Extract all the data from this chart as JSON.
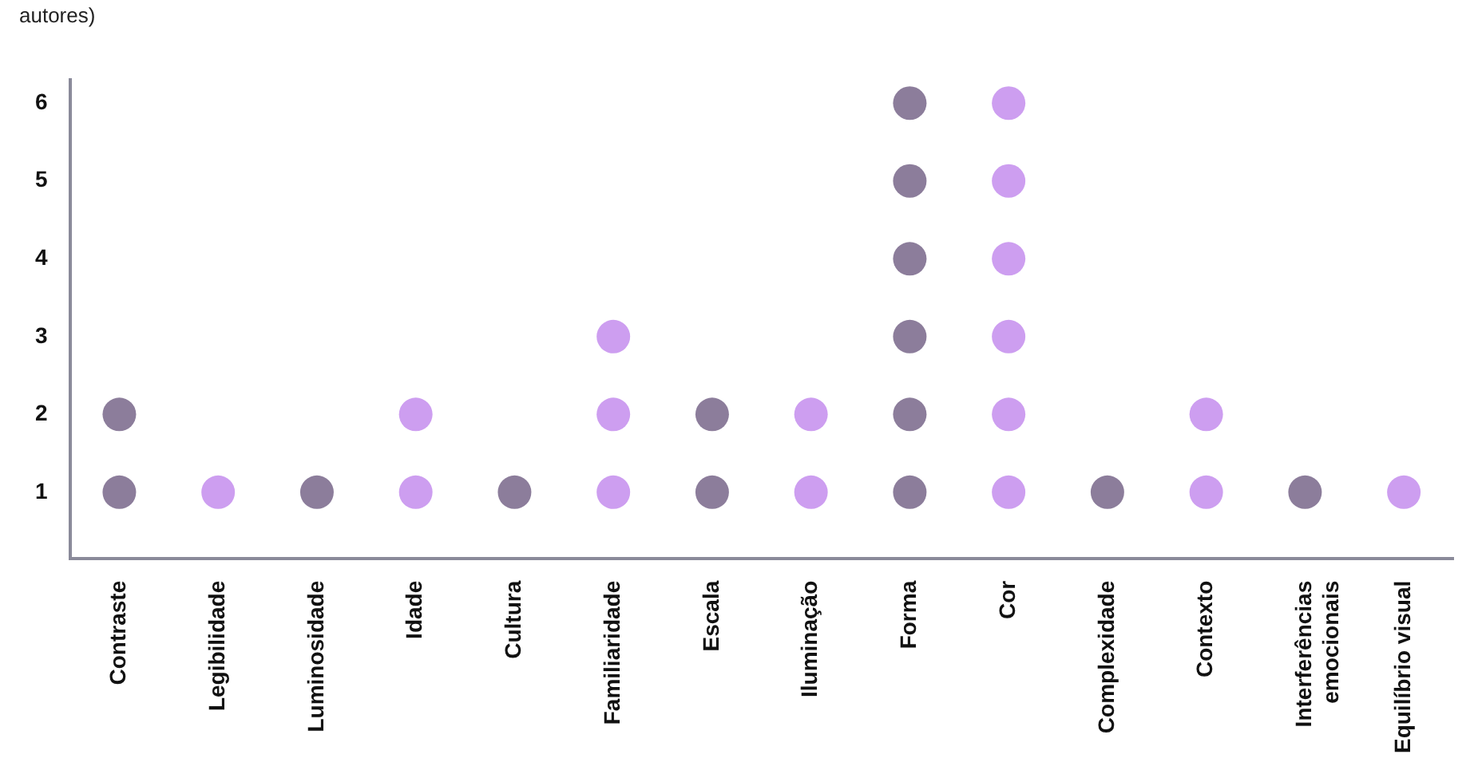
{
  "chart_data": {
    "type": "scatter",
    "title": "autores)",
    "categories": [
      "Contraste",
      "Legibilidade",
      "Luminosidade",
      "Idade",
      "Cultura",
      "Familiaridade",
      "Escala",
      "Iluminação",
      "Forma",
      "Cor",
      "Complexidade",
      "Contexto",
      "Interferências emocionais",
      "Equilíbrio visual"
    ],
    "series": [
      {
        "color": "#8c7d9b",
        "x": [
          "Contraste",
          "Contraste",
          "Luminosidade",
          "Cultura",
          "Escala",
          "Escala",
          "Forma",
          "Forma",
          "Forma",
          "Forma",
          "Forma",
          "Forma",
          "Complexidade",
          "Interferências emocionais"
        ],
        "values": [
          1,
          2,
          1,
          1,
          1,
          2,
          1,
          2,
          3,
          4,
          5,
          6,
          1,
          1
        ]
      },
      {
        "color": "#cd9ef0",
        "x": [
          "Legibilidade",
          "Idade",
          "Idade",
          "Familiaridade",
          "Familiaridade",
          "Familiaridade",
          "Iluminação",
          "Iluminação",
          "Cor",
          "Cor",
          "Cor",
          "Cor",
          "Cor",
          "Cor",
          "Contexto",
          "Contexto",
          "Equilíbrio visual"
        ],
        "values": [
          1,
          1,
          2,
          1,
          2,
          3,
          1,
          2,
          1,
          2,
          3,
          4,
          5,
          6,
          1,
          2,
          1
        ]
      }
    ],
    "ylim": [
      0.15,
      6.3
    ],
    "yticks": [
      1,
      2,
      3,
      4,
      5,
      6
    ],
    "grid": false,
    "legend": false,
    "marker": "circle"
  }
}
